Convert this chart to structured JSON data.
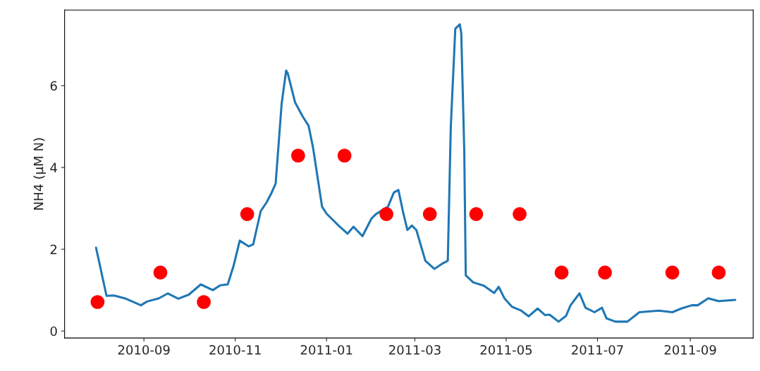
{
  "chart_data": {
    "type": "line",
    "ylabel": "NH4 (μM N)",
    "xlim": [
      "2010-07-10",
      "2011-10-13"
    ],
    "ylim": [
      -0.17,
      7.85
    ],
    "xticks": [
      "2010-09",
      "2010-11",
      "2011-01",
      "2011-03",
      "2011-05",
      "2011-07",
      "2011-09"
    ],
    "yticks": [
      0,
      2,
      4,
      6
    ],
    "grid": false,
    "legend": false,
    "series": [
      {
        "color": "#1f77b4",
        "marker": "none",
        "line_style": "solid",
        "x": [
          "2010-07-31",
          "2010-08-07",
          "2010-08-12",
          "2010-08-20",
          "2010-08-30",
          "2010-09-03",
          "2010-09-11",
          "2010-09-17",
          "2010-09-24",
          "2010-10-01",
          "2010-10-09",
          "2010-10-17",
          "2010-10-22",
          "2010-10-27",
          "2010-10-31",
          "2010-11-04",
          "2010-11-10",
          "2010-11-13",
          "2010-11-18",
          "2010-11-22",
          "2010-11-25",
          "2010-11-28",
          "2010-12-02",
          "2010-12-05",
          "2010-12-06",
          "2010-12-11",
          "2010-12-16",
          "2010-12-20",
          "2010-12-23",
          "2010-12-29",
          "2011-01-01",
          "2011-01-09",
          "2011-01-15",
          "2011-01-19",
          "2011-01-25",
          "2011-01-31",
          "2011-02-03",
          "2011-02-11",
          "2011-02-15",
          "2011-02-18",
          "2011-02-21",
          "2011-02-24",
          "2011-02-27",
          "2011-03-02",
          "2011-03-08",
          "2011-03-14",
          "2011-03-19",
          "2011-03-23",
          "2011-03-25",
          "2011-03-28",
          "2011-03-31",
          "2011-04-01",
          "2011-04-03",
          "2011-04-04",
          "2011-04-09",
          "2011-04-16",
          "2011-04-23",
          "2011-04-26",
          "2011-04-30",
          "2011-05-05",
          "2011-05-11",
          "2011-05-16",
          "2011-05-22",
          "2011-05-27",
          "2011-05-30",
          "2011-06-05",
          "2011-06-10",
          "2011-06-13",
          "2011-06-19",
          "2011-06-23",
          "2011-06-29",
          "2011-07-04",
          "2011-07-07",
          "2011-07-13",
          "2011-07-21",
          "2011-07-29",
          "2011-08-11",
          "2011-08-20",
          "2011-08-26",
          "2011-09-02",
          "2011-09-06",
          "2011-09-13",
          "2011-09-20",
          "2011-10-01"
        ],
        "values": [
          2.04,
          0.86,
          0.87,
          0.79,
          0.63,
          0.72,
          0.8,
          0.92,
          0.79,
          0.89,
          1.14,
          1.0,
          1.12,
          1.14,
          1.61,
          2.21,
          2.07,
          2.12,
          2.93,
          3.15,
          3.36,
          3.61,
          5.56,
          6.37,
          6.31,
          5.59,
          5.25,
          5.02,
          4.48,
          3.04,
          2.87,
          2.58,
          2.38,
          2.55,
          2.32,
          2.75,
          2.86,
          3.04,
          3.39,
          3.45,
          2.93,
          2.47,
          2.58,
          2.47,
          1.72,
          1.52,
          1.64,
          1.72,
          4.99,
          7.39,
          7.5,
          7.28,
          4.41,
          1.36,
          1.19,
          1.11,
          0.93,
          1.08,
          0.79,
          0.59,
          0.5,
          0.36,
          0.55,
          0.39,
          0.4,
          0.23,
          0.37,
          0.63,
          0.92,
          0.57,
          0.46,
          0.57,
          0.31,
          0.23,
          0.23,
          0.46,
          0.5,
          0.46,
          0.55,
          0.63,
          0.63,
          0.8,
          0.73,
          0.76
        ]
      },
      {
        "type": "scatter",
        "color": "#ff0000",
        "marker": "circle",
        "x": [
          "2010-08-01",
          "2010-09-12",
          "2010-10-11",
          "2010-11-09",
          "2010-12-13",
          "2011-01-13",
          "2011-02-10",
          "2011-03-11",
          "2011-04-11",
          "2011-05-10",
          "2011-06-07",
          "2011-07-06",
          "2011-08-20",
          "2011-09-20"
        ],
        "values": [
          0.71,
          1.43,
          0.71,
          2.86,
          4.29,
          4.29,
          2.86,
          2.86,
          2.86,
          2.86,
          1.43,
          1.43,
          1.43,
          1.43
        ]
      }
    ]
  }
}
